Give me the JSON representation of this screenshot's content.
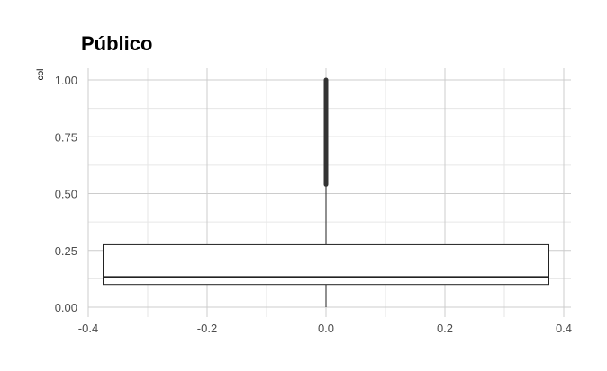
{
  "chart_data": {
    "type": "boxplot",
    "title": "Público",
    "xlabel": "",
    "ylabel": "col",
    "xlim": [
      -0.4,
      0.4
    ],
    "ylim": [
      0,
      1
    ],
    "x_ticks": [
      -0.4,
      -0.2,
      0.0,
      0.2,
      0.4
    ],
    "x_tick_labels": [
      "-0.4",
      "-0.2",
      "0.0",
      "0.2",
      "0.4"
    ],
    "y_ticks": [
      0,
      0.25,
      0.5,
      0.75,
      1.0
    ],
    "y_tick_labels": [
      "0.00",
      "0.25",
      "0.50",
      "0.75",
      "1.00"
    ],
    "grid": true,
    "box": {
      "x_center": 0.0,
      "x_min": -0.375,
      "x_max": 0.375,
      "q1": 0.1,
      "median": 0.133,
      "q3": 0.275,
      "whisker_low": 0.0,
      "whisker_high": 0.54,
      "outliers_range": [
        0.54,
        1.0
      ]
    },
    "colors": {
      "box_fill": "#ffffff",
      "box_stroke": "#222222",
      "grid_major": "#cccccc",
      "grid_minor": "#e6e6e6",
      "tick_text": "#4d4d4d",
      "outlier": "#333333"
    }
  }
}
